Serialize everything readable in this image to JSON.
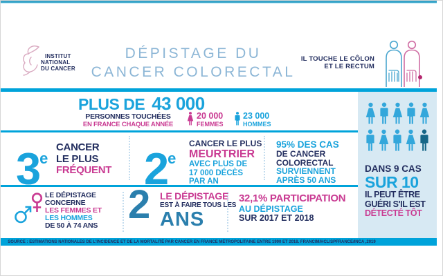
{
  "colors": {
    "cyan": "#1aa3dc",
    "cyanBar": "#00a3da",
    "navy": "#232e5f",
    "pink": "#c93a92",
    "teal2": "#2b7fad",
    "titleBlue": "#8cb6d6",
    "sidebarBg": "#d7e9f3",
    "figBlue": "#33a7db",
    "figDark": "#166687",
    "topline": "#35a3c8",
    "logoPink": "#d9a9c0",
    "bodyBlue": "#4aa6cf",
    "bodyPink": "#cf6da3"
  },
  "header": {
    "logo_line1": "INSTITUT",
    "logo_line2": "NATIONAL",
    "logo_line3": "DU CANCER",
    "title_line1": "DÉPISTAGE DU",
    "title_line2": "CANCER COLORECTAL",
    "note_line1": "IL TOUCHE LE CÔLON",
    "note_line2": "ET LE RECTUM"
  },
  "stats": {
    "affected": {
      "headline_prefix": "PLUS DE",
      "headline_number": "43 000",
      "sub1": "PERSONNES TOUCHÉES",
      "sub2": "EN FRANCE CHAQUE ANNÉE",
      "women_count": "20 000",
      "women_label": "FEMMES",
      "men_count": "23 000",
      "men_label": "HOMMES"
    },
    "rank_frequency": {
      "number": "3",
      "ordinal": "e",
      "line1": "CANCER",
      "line2": "LE PLUS",
      "line3": "FRÉQUENT"
    },
    "rank_mortality": {
      "number": "2",
      "ordinal": "e",
      "line1": "CANCER LE PLUS",
      "line2": "MEURTRIER",
      "line3": "AVEC PLUS DE",
      "line4": "17 000 DÉCÈS",
      "line5": "PAR AN"
    },
    "age_cases": {
      "line1": "95% DES CAS",
      "line2": "DE CANCER",
      "line3": "COLORECTAL",
      "line4": "SURVIENNENT",
      "line5": "APRÈS 50 ANS"
    },
    "screening_who": {
      "line1": "LE DÉPISTAGE",
      "line2": "CONCERNE",
      "line3": "LES FEMMES ET",
      "line4": "LES HOMMES",
      "line5": "DE 50 À 74 ANS"
    },
    "screening_freq": {
      "number": "2",
      "line1": "LE DÉPISTAGE",
      "line2": "EST À FAIRE TOUS LES",
      "unit": "ANS"
    },
    "participation": {
      "line1": "32,1% PARTICIPATION",
      "line2": "AU DÉPISTAGE",
      "line3": "SUR 2017 ET 2018"
    }
  },
  "sidebar": {
    "people": [
      "woman",
      "man",
      "woman",
      "man",
      "woman",
      "man",
      "woman",
      "man",
      "woman",
      "man-dark"
    ],
    "line1": "DANS 9 CAS",
    "line2": "SUR 10",
    "line3": "IL PEUT ÊTRE",
    "line4": "GUÉRI S'IL EST",
    "line5": "DÉTECTÉ TÔT"
  },
  "source": "SOURCE : ESTIMATIONS NATIONALES DE L'INCIDENCE ET DE LA MORTALITÉ PAR CANCER EN FRANCE MÉTROPOLITAINE ENTRE 1990 ET 2018. FRANCIM/HCL/SPFRANCE/INCA ,2019"
}
